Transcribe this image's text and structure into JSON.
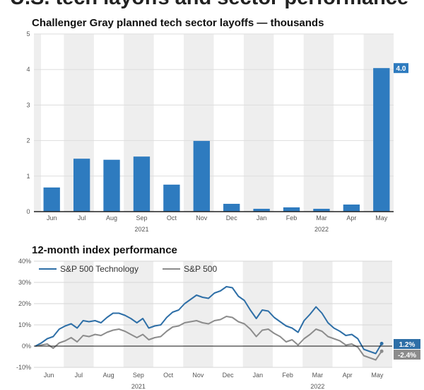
{
  "headline": "U.S. tech layoffs and sector performance",
  "chart_data": [
    {
      "type": "bar",
      "title": "Challenger Gray planned tech sector layoffs — thousands",
      "xlabel": "",
      "ylabel": "",
      "categories": [
        "Jun",
        "Jul",
        "Aug",
        "Sep",
        "Oct",
        "Nov",
        "Dec",
        "Jan",
        "Feb",
        "Mar",
        "Apr",
        "May"
      ],
      "year_labels": [
        {
          "label": "2021",
          "under": "Sep"
        },
        {
          "label": "2022",
          "under": "Mar"
        }
      ],
      "values": [
        0.68,
        1.49,
        1.46,
        1.55,
        0.76,
        1.99,
        0.22,
        0.08,
        0.12,
        0.08,
        0.2,
        4.04
      ],
      "ylim": [
        0,
        5
      ],
      "yticks": [
        0,
        1,
        2,
        3,
        4,
        5
      ],
      "grid": true,
      "last_value_label": "4.0",
      "color": "#2e7bbf"
    },
    {
      "type": "line",
      "title": "12-month index performance",
      "xlabel": "",
      "ylabel": "",
      "categories": [
        "Jun",
        "Jul",
        "Aug",
        "Sep",
        "Oct",
        "Nov",
        "Dec",
        "Jan",
        "Feb",
        "Mar",
        "Apr",
        "May"
      ],
      "year_labels": [
        {
          "label": "2021",
          "under": "Sep"
        },
        {
          "label": "2022",
          "under": "Mar"
        }
      ],
      "ylim": [
        -10,
        40
      ],
      "yticks": [
        -10,
        0,
        10,
        20,
        30,
        40
      ],
      "ytick_suffix": "%",
      "grid": true,
      "legend_position": "top-left",
      "series": [
        {
          "name": "S&P 500 Technology",
          "color": "#2e6fa7",
          "last_value_label": "1.2%",
          "x": [
            0,
            0.2,
            0.4,
            0.6,
            0.8,
            1.0,
            1.2,
            1.4,
            1.6,
            1.8,
            2.0,
            2.2,
            2.4,
            2.6,
            2.8,
            3.0,
            3.2,
            3.4,
            3.6,
            3.8,
            4.0,
            4.2,
            4.4,
            4.6,
            4.8,
            5.0,
            5.2,
            5.4,
            5.6,
            5.8,
            6.0,
            6.2,
            6.4,
            6.6,
            6.8,
            7.0,
            7.2,
            7.4,
            7.6,
            7.8,
            8.0,
            8.2,
            8.4,
            8.6,
            8.8,
            9.0,
            9.2,
            9.4,
            9.6,
            9.8,
            10.0,
            10.2,
            10.4,
            10.6,
            10.8,
            11.0,
            11.2,
            11.4,
            11.6
          ],
          "y": [
            0,
            1.5,
            3.5,
            4.5,
            8,
            9.5,
            10.5,
            8.5,
            12,
            11.5,
            12,
            11,
            13.5,
            15.5,
            15.5,
            14.5,
            13,
            11,
            13,
            8.5,
            9.5,
            10,
            13.5,
            16,
            17,
            20,
            22,
            24,
            23,
            22.5,
            25,
            26,
            28,
            27.5,
            23.5,
            21.5,
            17,
            13,
            17,
            16.5,
            13.5,
            11.5,
            9.5,
            8.5,
            6.5,
            12,
            15,
            18.5,
            15.5,
            11,
            8.5,
            7,
            5,
            5.5,
            3.5,
            -1.5,
            -2.5,
            -3.5,
            1.2
          ]
        },
        {
          "name": "S&P 500",
          "color": "#8c8c8c",
          "last_value_label": "-2.4%",
          "x": [
            0,
            0.2,
            0.4,
            0.6,
            0.8,
            1.0,
            1.2,
            1.4,
            1.6,
            1.8,
            2.0,
            2.2,
            2.4,
            2.6,
            2.8,
            3.0,
            3.2,
            3.4,
            3.6,
            3.8,
            4.0,
            4.2,
            4.4,
            4.6,
            4.8,
            5.0,
            5.2,
            5.4,
            5.6,
            5.8,
            6.0,
            6.2,
            6.4,
            6.6,
            6.8,
            7.0,
            7.2,
            7.4,
            7.6,
            7.8,
            8.0,
            8.2,
            8.4,
            8.6,
            8.8,
            9.0,
            9.2,
            9.4,
            9.6,
            9.8,
            10.0,
            10.2,
            10.4,
            10.6,
            10.8,
            11.0,
            11.2,
            11.4,
            11.6
          ],
          "y": [
            0,
            0.5,
            1,
            -1,
            1.5,
            2.5,
            4,
            2,
            5,
            4.5,
            5.5,
            5,
            6.5,
            7.5,
            8,
            7,
            5.5,
            4,
            5.5,
            3,
            4,
            4.5,
            7,
            9,
            9.5,
            11,
            11.5,
            12,
            11,
            10.5,
            12,
            12.5,
            14,
            13.5,
            11.5,
            10.5,
            8,
            4.5,
            7.5,
            8,
            6,
            4.5,
            2,
            3,
            0.5,
            3.5,
            5.5,
            8,
            7,
            4.5,
            3.5,
            2.5,
            0.5,
            1,
            -0.5,
            -4.5,
            -5.5,
            -6.5,
            -2.4
          ]
        }
      ]
    }
  ]
}
